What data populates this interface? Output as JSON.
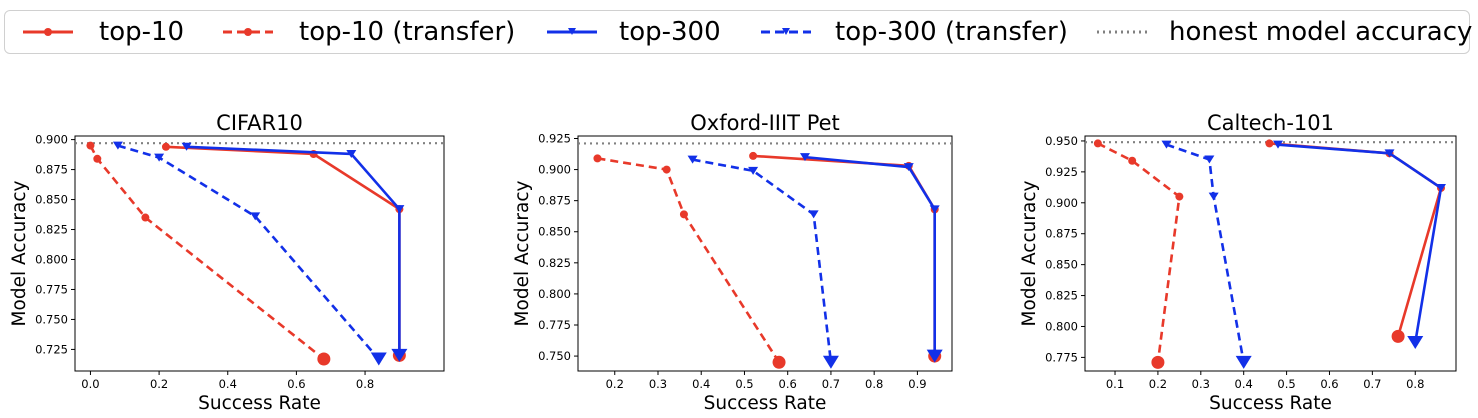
{
  "legend": {
    "entries": [
      {
        "key": "top10",
        "label": "top-10"
      },
      {
        "key": "top10t",
        "label": "top-10 (transfer)"
      },
      {
        "key": "top300",
        "label": "top-300"
      },
      {
        "key": "top300t",
        "label": "top-300 (transfer)"
      },
      {
        "key": "honest",
        "label": "honest model accuracy"
      }
    ]
  },
  "colors": {
    "red": "#e8392a",
    "blue": "#1230e8",
    "gray": "#808080"
  },
  "chart_data": [
    {
      "type": "line",
      "title": "CIFAR10",
      "xlabel": "Success Rate",
      "ylabel": "Model Accuracy",
      "xlim": [
        -0.045,
        1.03
      ],
      "ylim": [
        0.707,
        0.903
      ],
      "xticks": [
        0.0,
        0.2,
        0.4,
        0.6,
        0.8
      ],
      "xtick_labels": [
        "0.0",
        "0.2",
        "0.4",
        "0.6",
        "0.8"
      ],
      "yticks": [
        0.725,
        0.75,
        0.775,
        0.8,
        0.825,
        0.85,
        0.875,
        0.9
      ],
      "ytick_labels": [
        "0.725",
        "0.750",
        "0.775",
        "0.800",
        "0.825",
        "0.850",
        "0.875",
        "0.900"
      ],
      "honest_accuracy": 0.897,
      "series": [
        {
          "key": "top10",
          "x": [
            0.22,
            0.65,
            0.9,
            0.9
          ],
          "y": [
            0.894,
            0.888,
            0.842,
            0.72
          ]
        },
        {
          "key": "top10t",
          "x": [
            0.0,
            0.02,
            0.16,
            0.68
          ],
          "y": [
            0.895,
            0.884,
            0.835,
            0.717
          ]
        },
        {
          "key": "top300",
          "x": [
            0.28,
            0.76,
            0.9,
            0.9
          ],
          "y": [
            0.894,
            0.888,
            0.842,
            0.72
          ]
        },
        {
          "key": "top300t",
          "x": [
            0.08,
            0.2,
            0.48,
            0.84
          ],
          "y": [
            0.895,
            0.885,
            0.836,
            0.717
          ]
        }
      ]
    },
    {
      "type": "line",
      "title": "Oxford-IIIT Pet",
      "xlabel": "Success Rate",
      "ylabel": "Model Accuracy",
      "xlim": [
        0.115,
        0.98
      ],
      "ylim": [
        0.738,
        0.927
      ],
      "xticks": [
        0.2,
        0.3,
        0.4,
        0.5,
        0.6,
        0.7,
        0.8,
        0.9
      ],
      "xtick_labels": [
        "0.2",
        "0.3",
        "0.4",
        "0.5",
        "0.6",
        "0.7",
        "0.8",
        "0.9"
      ],
      "yticks": [
        0.75,
        0.775,
        0.8,
        0.825,
        0.85,
        0.875,
        0.9,
        0.925
      ],
      "ytick_labels": [
        "0.750",
        "0.775",
        "0.800",
        "0.825",
        "0.850",
        "0.875",
        "0.900",
        "0.925"
      ],
      "honest_accuracy": 0.921,
      "series": [
        {
          "key": "top10",
          "x": [
            0.52,
            0.88,
            0.94,
            0.94
          ],
          "y": [
            0.911,
            0.903,
            0.868,
            0.75
          ]
        },
        {
          "key": "top10t",
          "x": [
            0.16,
            0.32,
            0.36,
            0.58
          ],
          "y": [
            0.909,
            0.9,
            0.864,
            0.745
          ]
        },
        {
          "key": "top300",
          "x": [
            0.64,
            0.88,
            0.94,
            0.94
          ],
          "y": [
            0.91,
            0.902,
            0.868,
            0.75
          ]
        },
        {
          "key": "top300t",
          "x": [
            0.38,
            0.52,
            0.66,
            0.7
          ],
          "y": [
            0.908,
            0.899,
            0.864,
            0.745
          ]
        }
      ]
    },
    {
      "type": "line",
      "title": "Caltech-101",
      "xlabel": "Success Rate",
      "ylabel": "Model Accuracy",
      "xlim": [
        0.03,
        0.895
      ],
      "ylim": [
        0.764,
        0.954
      ],
      "xticks": [
        0.1,
        0.2,
        0.3,
        0.4,
        0.5,
        0.6,
        0.7,
        0.8
      ],
      "xtick_labels": [
        "0.1",
        "0.2",
        "0.3",
        "0.4",
        "0.5",
        "0.6",
        "0.7",
        "0.8"
      ],
      "yticks": [
        0.775,
        0.8,
        0.825,
        0.85,
        0.875,
        0.9,
        0.925,
        0.95
      ],
      "ytick_labels": [
        "0.775",
        "0.800",
        "0.825",
        "0.850",
        "0.875",
        "0.900",
        "0.925",
        "0.950"
      ],
      "honest_accuracy": 0.949,
      "series": [
        {
          "key": "top10",
          "x": [
            0.46,
            0.74,
            0.86,
            0.76
          ],
          "y": [
            0.948,
            0.94,
            0.912,
            0.792
          ]
        },
        {
          "key": "top10t",
          "x": [
            0.06,
            0.14,
            0.25,
            0.2
          ],
          "y": [
            0.948,
            0.934,
            0.905,
            0.771
          ]
        },
        {
          "key": "top300",
          "x": [
            0.48,
            0.74,
            0.86,
            0.8
          ],
          "y": [
            0.947,
            0.94,
            0.912,
            0.787
          ]
        },
        {
          "key": "top300t",
          "x": [
            0.22,
            0.32,
            0.33,
            0.4
          ],
          "y": [
            0.947,
            0.935,
            0.905,
            0.771
          ]
        }
      ]
    }
  ]
}
